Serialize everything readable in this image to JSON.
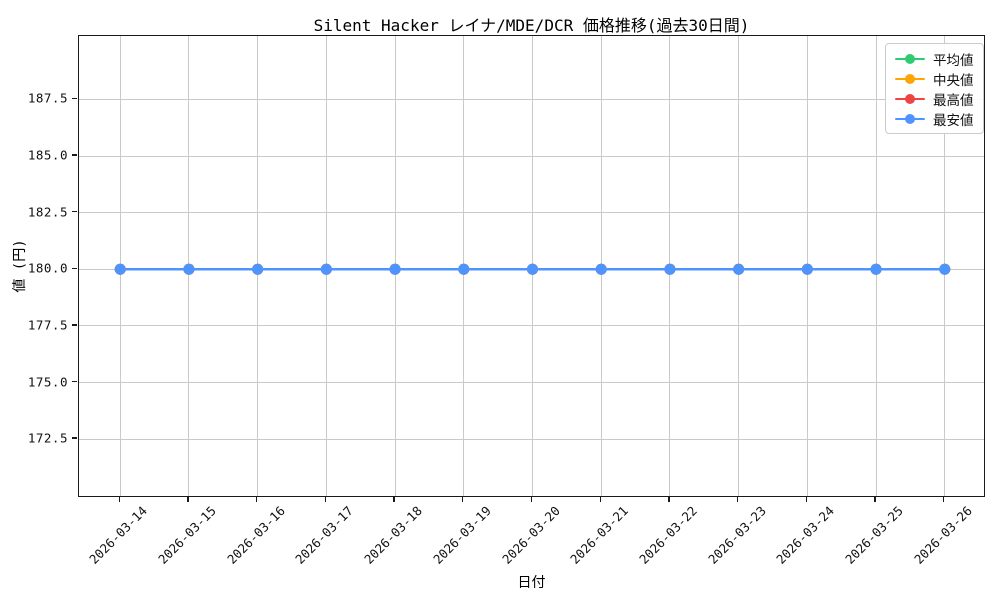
{
  "figure": {
    "title": "Silent Hacker レイナ/MDE/DCR 価格推移(過去30日間)",
    "xlabel": "日付",
    "ylabel": "値 (円)"
  },
  "chart_data": {
    "type": "line",
    "title": "Silent Hacker レイナ/MDE/DCR 価格推移(過去30日間)",
    "xlabel": "日付",
    "ylabel": "値 (円)",
    "x": [
      "2026-03-14",
      "2026-03-15",
      "2026-03-16",
      "2026-03-17",
      "2026-03-18",
      "2026-03-19",
      "2026-03-20",
      "2026-03-21",
      "2026-03-22",
      "2026-03-23",
      "2026-03-24",
      "2026-03-25",
      "2026-03-26"
    ],
    "series": [
      {
        "name": "平均値",
        "color": "#2ecc71",
        "marker": "o",
        "values": [
          180,
          180,
          180,
          180,
          180,
          180,
          180,
          180,
          180,
          180,
          180,
          180,
          180
        ]
      },
      {
        "name": "中央値",
        "color": "#ffa502",
        "marker": "o",
        "values": [
          180,
          180,
          180,
          180,
          180,
          180,
          180,
          180,
          180,
          180,
          180,
          180,
          180
        ]
      },
      {
        "name": "最高値",
        "color": "#ee4444",
        "marker": "o",
        "values": [
          180,
          180,
          180,
          180,
          180,
          180,
          180,
          180,
          180,
          180,
          180,
          180,
          180
        ]
      },
      {
        "name": "最安値",
        "color": "#4d94ff",
        "marker": "o",
        "values": [
          180,
          180,
          180,
          180,
          180,
          180,
          180,
          180,
          180,
          180,
          180,
          180,
          180
        ]
      }
    ],
    "ylim": [
      169.9,
      190.3
    ],
    "yticks": [
      172.5,
      175.0,
      177.5,
      180.0,
      182.5,
      185.0,
      187.5
    ],
    "ytick_labels": [
      "172.5",
      "175.0",
      "177.5",
      "180.0",
      "182.5",
      "185.0",
      "187.5"
    ],
    "grid": true,
    "legend_position": "upper right",
    "colors": {
      "grid": "#c9c9c9",
      "axis": "#1a1a1a",
      "background": "#ffffff"
    }
  }
}
